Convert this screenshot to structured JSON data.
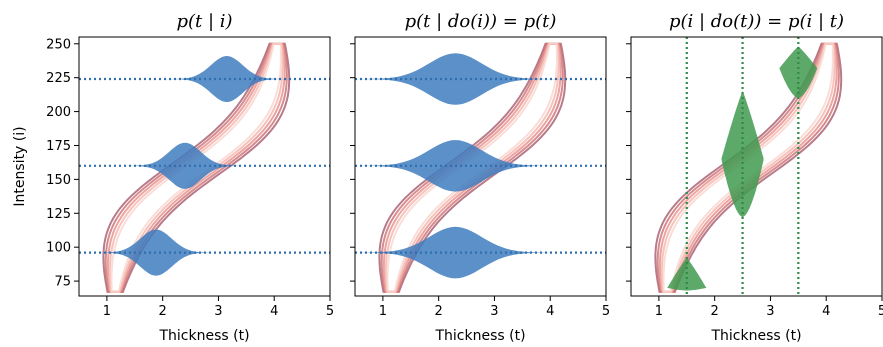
{
  "chart_data": [
    {
      "type": "line",
      "title": "p(t | i)",
      "xlabel": "Thickness (t)",
      "ylabel": "Intensity (i)",
      "xlim": [
        0.5,
        5
      ],
      "ylim": [
        64,
        255
      ],
      "xticks": [
        "1",
        "2",
        "3",
        "4",
        "5"
      ],
      "yticks": [
        "75",
        "100",
        "125",
        "150",
        "175",
        "200",
        "225",
        "250"
      ],
      "conditioning": {
        "axis": "y",
        "values": [
          96,
          160,
          224
        ]
      },
      "violins": [
        {
          "center": 96,
          "peak": 1.88,
          "spread": 0.42,
          "height": 17
        },
        {
          "center": 160,
          "peak": 2.4,
          "spread": 0.42,
          "height": 17
        },
        {
          "center": 224,
          "peak": 3.15,
          "spread": 0.42,
          "height": 17
        }
      ]
    },
    {
      "type": "line",
      "title": "p(t | do(i)) = p(t)",
      "xlabel": "Thickness (t)",
      "ylabel": "",
      "xlim": [
        0.5,
        5
      ],
      "ylim": [
        64,
        255
      ],
      "xticks": [
        "1",
        "2",
        "3",
        "4",
        "5"
      ],
      "conditioning": {
        "axis": "y",
        "values": [
          96,
          160,
          224
        ]
      },
      "violins": [
        {
          "center": 96,
          "peak": 2.3,
          "spread": 0.7,
          "height": 19
        },
        {
          "center": 160,
          "peak": 2.3,
          "spread": 0.7,
          "height": 19
        },
        {
          "center": 224,
          "peak": 2.3,
          "spread": 0.7,
          "height": 19
        }
      ]
    },
    {
      "type": "line",
      "title": "p(i | do(t)) = p(i | t)",
      "xlabel": "Thickness (t)",
      "ylabel": "",
      "xlim": [
        0.5,
        5
      ],
      "ylim": [
        64,
        255
      ],
      "xticks": [
        "1",
        "2",
        "3",
        "4",
        "5"
      ],
      "conditioning": {
        "axis": "x",
        "values": [
          1.5,
          2.5,
          3.5
        ]
      },
      "violins": [
        {
          "center": 1.5,
          "range": [
            68,
            92
          ],
          "peak": 70,
          "width": 0.35
        },
        {
          "center": 2.5,
          "range": [
            122,
            215
          ],
          "peak": 165,
          "width": 0.38
        },
        {
          "center": 3.5,
          "range": [
            210,
            248
          ],
          "peak": 232,
          "width": 0.34
        }
      ]
    }
  ],
  "colors": {
    "violin_blue": "#3e7dbf",
    "violin_green": "#3f9a50",
    "dotted_blue": "#2f6eaf",
    "dotted_green": "#2e8a46",
    "contours": [
      "#f9d5cd",
      "#f2b3ab",
      "#e88c87",
      "#c96f73",
      "#a85a6b"
    ]
  }
}
